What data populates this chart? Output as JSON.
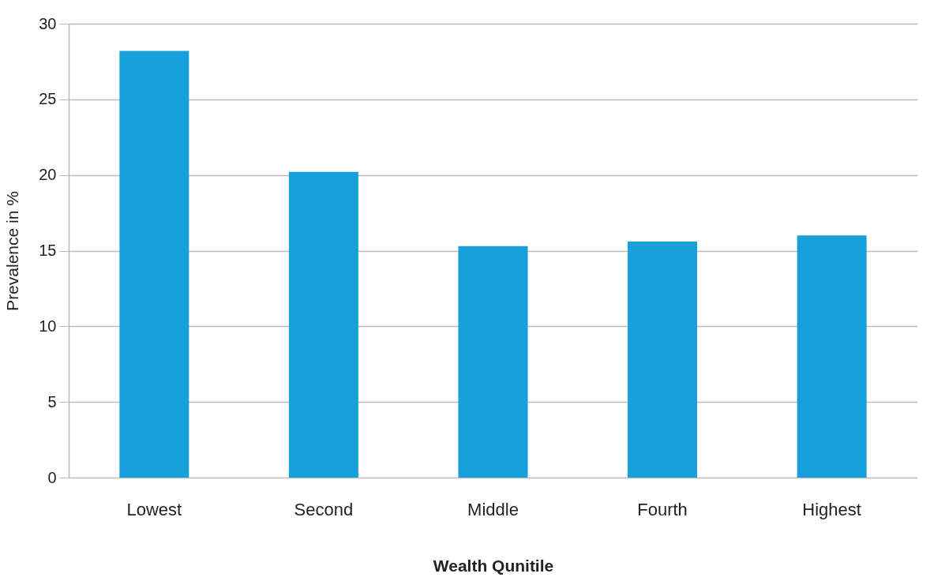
{
  "chart_data": {
    "type": "bar",
    "xlabel": "Wealth Qunitile",
    "ylabel": "Prevalence in %",
    "categories": [
      "Lowest",
      "Second",
      "Middle",
      "Fourth",
      "Highest"
    ],
    "values": [
      28.2,
      20.2,
      15.3,
      15.6,
      16.0
    ],
    "color": "#17a0d9",
    "ylim": [
      0,
      30
    ],
    "yticks": [
      0,
      5,
      10,
      15,
      20,
      25,
      30
    ],
    "grid": "y"
  }
}
